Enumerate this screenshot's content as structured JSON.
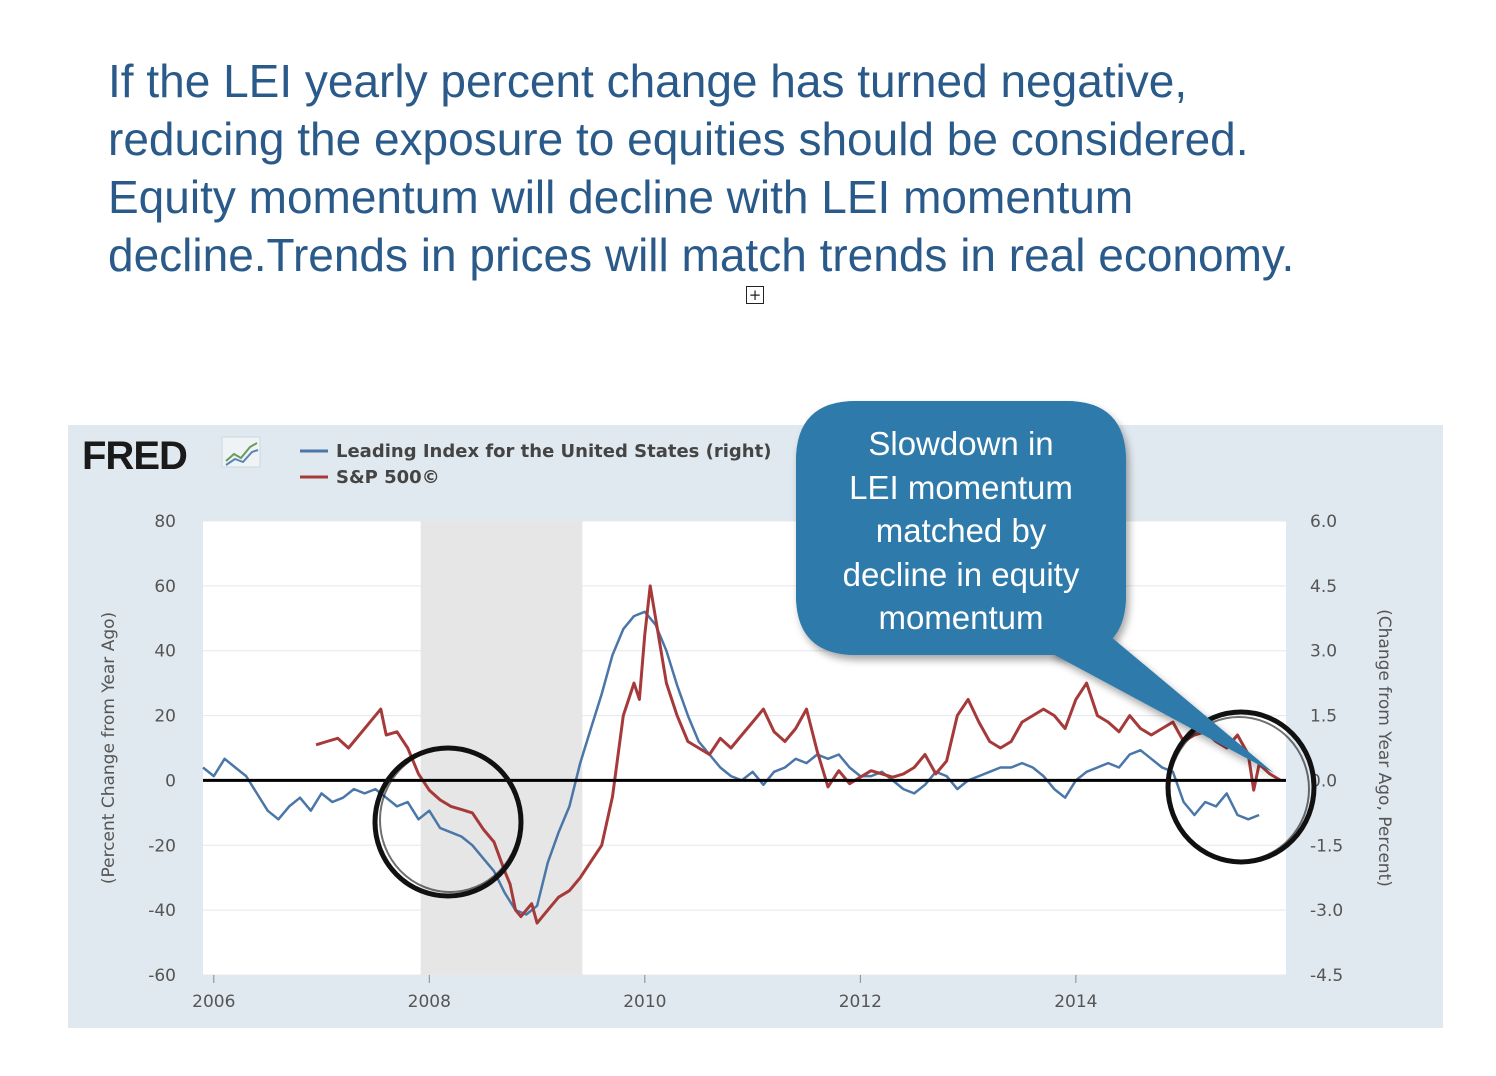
{
  "headline": {
    "lines": [
      "If the LEI yearly percent change has turned negative,",
      "reducing the exposure to equities should be considered.",
      "Equity momentum will decline with LEI momentum",
      "decline.Trends in prices will match trends in real economy."
    ],
    "color": "#2a5a8a"
  },
  "expand_icon": "plus-in-box",
  "callout": {
    "lines": [
      "Slowdown in",
      "LEI momentum",
      "matched by",
      "decline in equity",
      "momentum"
    ],
    "fill": "#2e7aaa"
  },
  "chart_data": {
    "type": "line",
    "source_logo": "FRED",
    "title": "",
    "xlabel": "",
    "ylabel": "(Percent Change from Year Ago)",
    "ylabel_right": "(Change from Year Ago, Percent)",
    "xlim": [
      2005.9,
      2015.95
    ],
    "ylim": [
      -60,
      80
    ],
    "ylim_right": [
      -4.5,
      6.0
    ],
    "x_ticks": [
      "2006",
      "2008",
      "2010",
      "2012",
      "2014"
    ],
    "y_ticks": [
      "80",
      "60",
      "40",
      "20",
      "0",
      "-20",
      "-40",
      "-60"
    ],
    "y_ticks_right": [
      "6.0",
      "4.5",
      "3.0",
      "1.5",
      "0.0",
      "-1.5",
      "-3.0",
      "-4.5"
    ],
    "recession_shading": [
      [
        2007.92,
        2009.42
      ]
    ],
    "grid": true,
    "legend": {
      "placement": "top-left"
    },
    "series": [
      {
        "name": "Leading Index for the United States (right)",
        "axis": "right",
        "color": "#4a76a8",
        "x": [
          2005.9,
          2006.0,
          2006.1,
          2006.2,
          2006.3,
          2006.4,
          2006.5,
          2006.6,
          2006.7,
          2006.8,
          2006.9,
          2007.0,
          2007.1,
          2007.2,
          2007.3,
          2007.4,
          2007.5,
          2007.6,
          2007.7,
          2007.8,
          2007.9,
          2008.0,
          2008.1,
          2008.2,
          2008.3,
          2008.4,
          2008.5,
          2008.6,
          2008.7,
          2008.8,
          2008.9,
          2009.0,
          2009.1,
          2009.2,
          2009.3,
          2009.4,
          2009.5,
          2009.6,
          2009.7,
          2009.8,
          2009.9,
          2010.0,
          2010.1,
          2010.2,
          2010.3,
          2010.4,
          2010.5,
          2010.6,
          2010.7,
          2010.8,
          2010.9,
          2011.0,
          2011.1,
          2011.2,
          2011.3,
          2011.4,
          2011.5,
          2011.6,
          2011.7,
          2011.8,
          2011.9,
          2012.0,
          2012.1,
          2012.2,
          2012.3,
          2012.4,
          2012.5,
          2012.6,
          2012.7,
          2012.8,
          2012.9,
          2013.0,
          2013.1,
          2013.2,
          2013.3,
          2013.4,
          2013.5,
          2013.6,
          2013.7,
          2013.8,
          2013.9,
          2014.0,
          2014.1,
          2014.2,
          2014.3,
          2014.4,
          2014.5,
          2014.6,
          2014.7,
          2014.8,
          2014.9,
          2015.0,
          2015.1,
          2015.2,
          2015.3,
          2015.4,
          2015.5,
          2015.6,
          2015.7
        ],
        "values": [
          0.3,
          0.1,
          0.5,
          0.3,
          0.1,
          -0.3,
          -0.7,
          -0.9,
          -0.6,
          -0.4,
          -0.7,
          -0.3,
          -0.5,
          -0.4,
          -0.2,
          -0.3,
          -0.2,
          -0.4,
          -0.6,
          -0.5,
          -0.9,
          -0.7,
          -1.1,
          -1.2,
          -1.3,
          -1.5,
          -1.8,
          -2.1,
          -2.6,
          -3.0,
          -3.1,
          -2.9,
          -1.9,
          -1.2,
          -0.6,
          0.4,
          1.2,
          2.0,
          2.9,
          3.5,
          3.8,
          3.9,
          3.6,
          3.0,
          2.2,
          1.5,
          0.9,
          0.6,
          0.3,
          0.1,
          0.0,
          0.2,
          -0.1,
          0.2,
          0.3,
          0.5,
          0.4,
          0.6,
          0.5,
          0.6,
          0.3,
          0.1,
          0.1,
          0.2,
          0.0,
          -0.2,
          -0.3,
          -0.1,
          0.2,
          0.1,
          -0.2,
          0.0,
          0.1,
          0.2,
          0.3,
          0.3,
          0.4,
          0.3,
          0.1,
          -0.2,
          -0.4,
          0.0,
          0.2,
          0.3,
          0.4,
          0.3,
          0.6,
          0.7,
          0.5,
          0.3,
          0.2,
          -0.5,
          -0.8,
          -0.5,
          -0.6,
          -0.3,
          -0.8,
          -0.9,
          -0.8
        ]
      },
      {
        "name": "S&P 500©",
        "axis": "left",
        "color": "#a63a3a",
        "x": [
          2006.95,
          2007.05,
          2007.15,
          2007.25,
          2007.35,
          2007.45,
          2007.55,
          2007.6,
          2007.7,
          2007.8,
          2007.9,
          2008.0,
          2008.1,
          2008.2,
          2008.3,
          2008.4,
          2008.5,
          2008.6,
          2008.7,
          2008.75,
          2008.8,
          2008.85,
          2008.9,
          2008.95,
          2009.0,
          2009.1,
          2009.2,
          2009.3,
          2009.4,
          2009.5,
          2009.6,
          2009.7,
          2009.8,
          2009.9,
          2009.95,
          2010.0,
          2010.05,
          2010.1,
          2010.15,
          2010.2,
          2010.3,
          2010.4,
          2010.5,
          2010.6,
          2010.7,
          2010.8,
          2010.9,
          2011.0,
          2011.1,
          2011.2,
          2011.3,
          2011.4,
          2011.5,
          2011.6,
          2011.7,
          2011.8,
          2011.9,
          2012.0,
          2012.1,
          2012.2,
          2012.3,
          2012.4,
          2012.5,
          2012.6,
          2012.7,
          2012.8,
          2012.9,
          2013.0,
          2013.1,
          2013.2,
          2013.3,
          2013.4,
          2013.5,
          2013.6,
          2013.7,
          2013.8,
          2013.9,
          2014.0,
          2014.1,
          2014.2,
          2014.3,
          2014.4,
          2014.5,
          2014.6,
          2014.7,
          2014.8,
          2014.9,
          2015.0,
          2015.1,
          2015.2,
          2015.3,
          2015.4,
          2015.5,
          2015.6,
          2015.65,
          2015.7,
          2015.8,
          2015.9
        ],
        "values": [
          11,
          12,
          13,
          10,
          14,
          18,
          22,
          14,
          15,
          10,
          2,
          -3,
          -6,
          -8,
          -9,
          -10,
          -15,
          -19,
          -28,
          -32,
          -40,
          -42,
          -40,
          -38,
          -44,
          -40,
          -36,
          -34,
          -30,
          -25,
          -20,
          -5,
          20,
          30,
          25,
          45,
          60,
          50,
          40,
          30,
          20,
          12,
          10,
          8,
          13,
          10,
          14,
          18,
          22,
          15,
          12,
          16,
          22,
          9,
          -2,
          3,
          -1,
          1,
          3,
          2,
          1,
          2,
          4,
          8,
          2,
          6,
          20,
          25,
          18,
          12,
          10,
          12,
          18,
          20,
          22,
          20,
          16,
          25,
          30,
          20,
          18,
          15,
          20,
          16,
          14,
          16,
          18,
          12,
          14,
          15,
          12,
          10,
          14,
          8,
          -3,
          5,
          2,
          0
        ]
      }
    ],
    "annotations": [
      "circle around 2008 decline",
      "circle around 2015 decline"
    ]
  }
}
